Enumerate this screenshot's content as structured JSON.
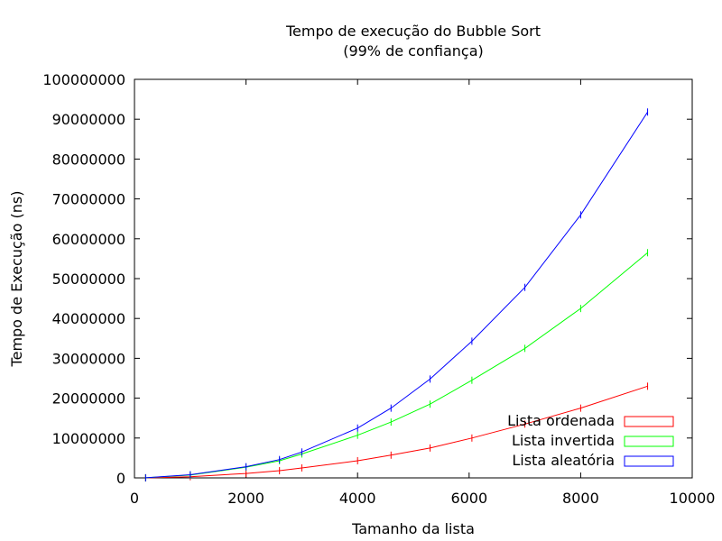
{
  "chart_data": {
    "type": "line",
    "title": "Tempo de execução do Bubble Sort",
    "subtitle": "(99% de confiança)",
    "xlabel": "Tamanho da lista",
    "ylabel": "Tempo de Execução (ns)",
    "xlim": [
      0,
      10000
    ],
    "ylim": [
      0,
      100000000
    ],
    "xticks": [
      0,
      2000,
      4000,
      6000,
      8000,
      10000
    ],
    "yticks": [
      0,
      10000000,
      20000000,
      30000000,
      40000000,
      50000000,
      60000000,
      70000000,
      80000000,
      90000000,
      100000000
    ],
    "xtick_labels": [
      "0",
      "2000",
      "4000",
      "6000",
      "8000",
      "10000"
    ],
    "ytick_labels": [
      "0",
      "10000000",
      "20000000",
      "30000000",
      "40000000",
      "50000000",
      "60000000",
      "70000000",
      "80000000",
      "90000000",
      "100000000"
    ],
    "grid": false,
    "legend_position": "bottom-right",
    "series": [
      {
        "name": "Lista ordenada",
        "color": "#ff0000",
        "x": [
          200,
          1000,
          2000,
          2600,
          3000,
          4000,
          4600,
          5300,
          6050,
          7000,
          8000,
          9200
        ],
        "y": [
          10000,
          300000,
          1100000,
          1800000,
          2500000,
          4300000,
          5700000,
          7500000,
          10000000,
          13500000,
          17500000,
          23000000
        ]
      },
      {
        "name": "Lista invertida",
        "color": "#00ff00",
        "x": [
          200,
          1000,
          2000,
          2600,
          3000,
          4000,
          4600,
          5300,
          6050,
          7000,
          8000,
          9200
        ],
        "y": [
          20000,
          700000,
          2700000,
          4300000,
          6000000,
          10700000,
          14000000,
          18500000,
          24500000,
          32500000,
          42500000,
          56500000
        ]
      },
      {
        "name": "Lista aleatória",
        "color": "#0000ff",
        "x": [
          200,
          1000,
          2000,
          2600,
          3000,
          4000,
          4600,
          5300,
          6050,
          7000,
          8000,
          9200
        ],
        "y": [
          20000,
          800000,
          2800000,
          4600000,
          6500000,
          12500000,
          17500000,
          24800000,
          34300000,
          47800000,
          66000000,
          91800000
        ]
      }
    ]
  }
}
